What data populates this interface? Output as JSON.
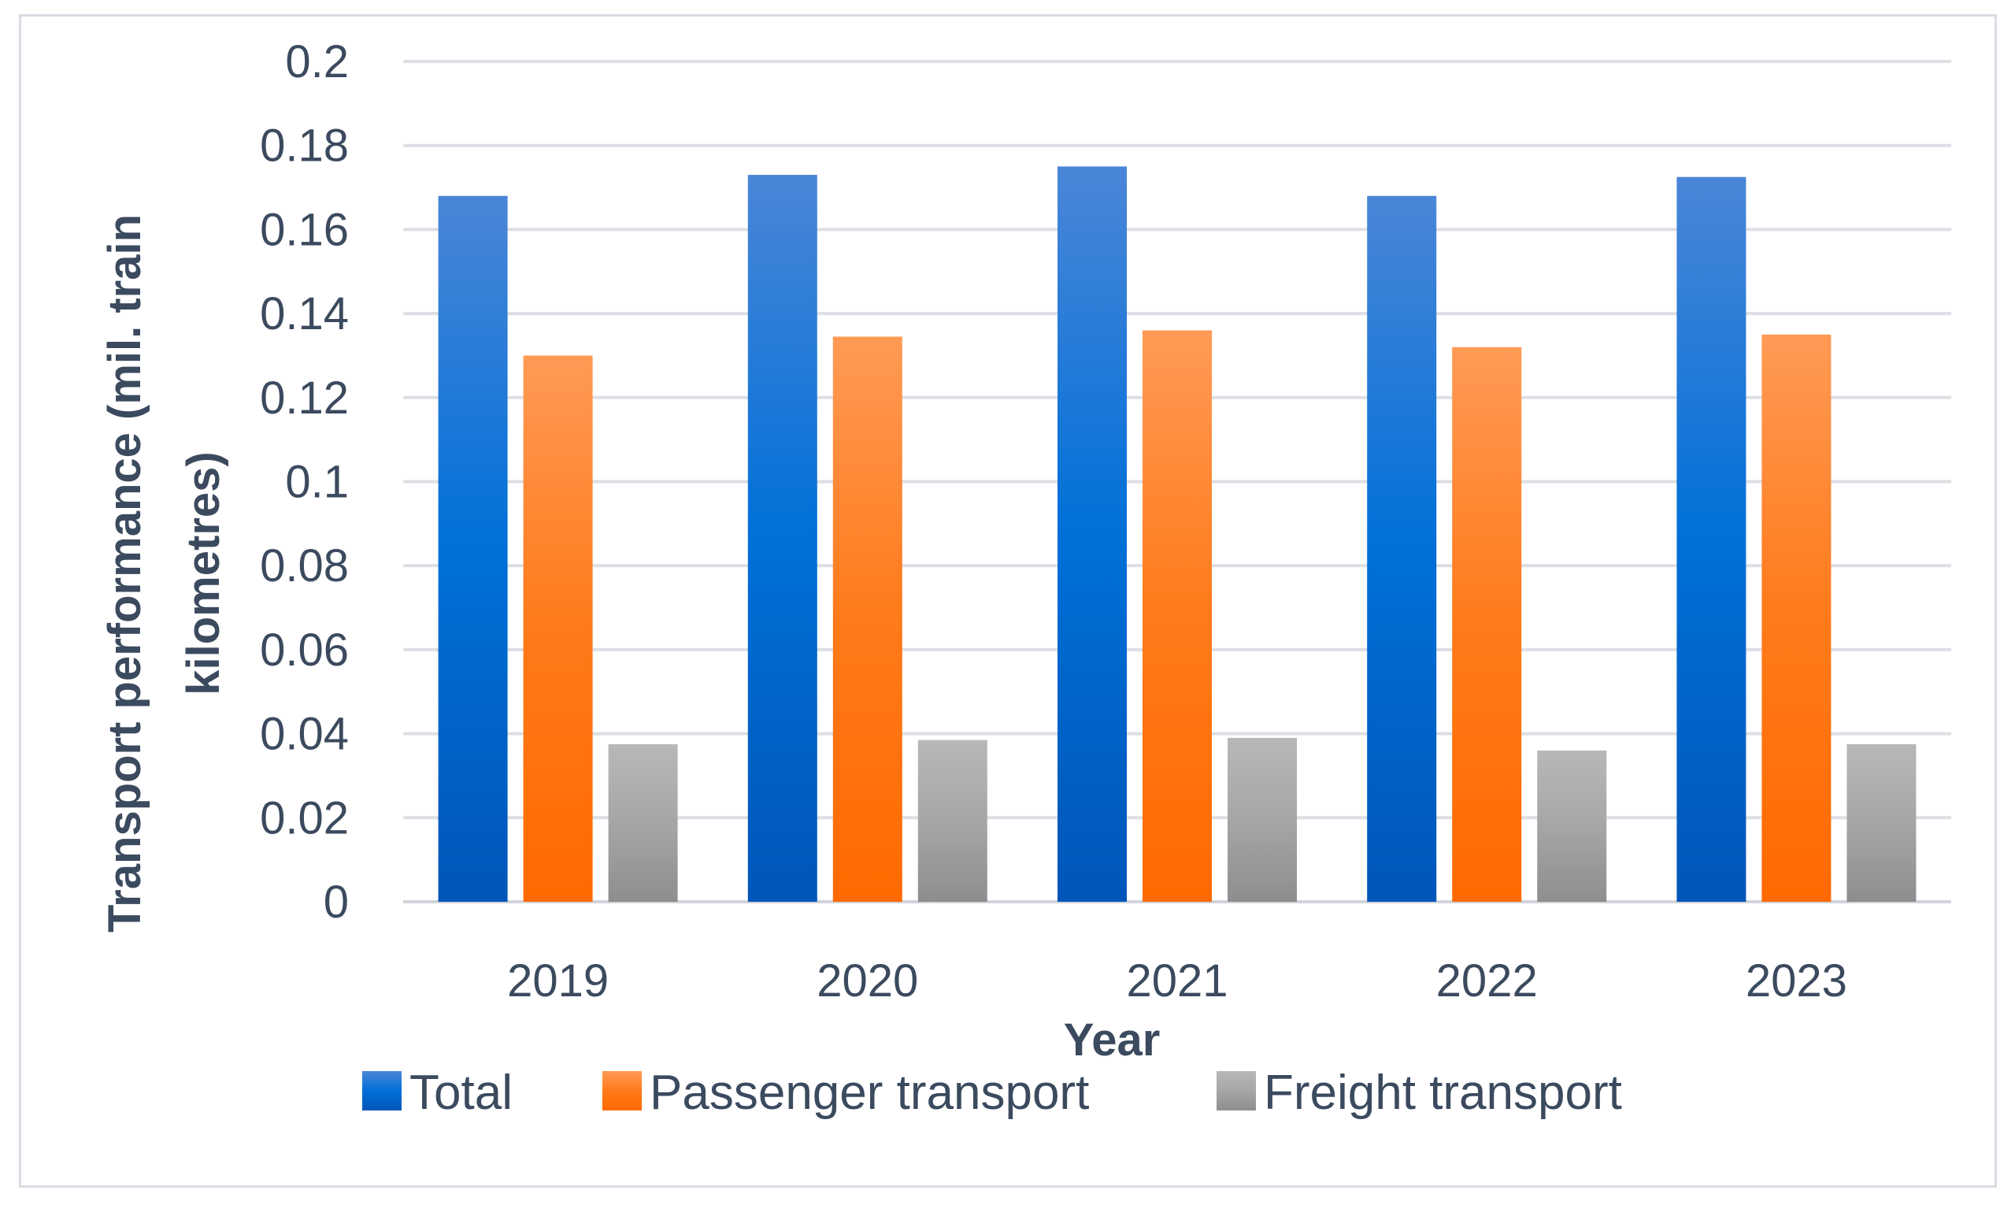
{
  "chart_data": {
    "type": "bar",
    "title": "",
    "xlabel": "Year",
    "ylabel": "Transport performance (mil. train kilometres)",
    "ylim": [
      0,
      0.2
    ],
    "yticks": [
      "0",
      "0.02",
      "0.04",
      "0.06",
      "0.08",
      "0.1",
      "0.12",
      "0.14",
      "0.16",
      "0.18",
      "0.2"
    ],
    "categories": [
      "2019",
      "2020",
      "2021",
      "2022",
      "2023"
    ],
    "grid": true,
    "legend_position": "bottom",
    "series": [
      {
        "name": "Total",
        "values": [
          0.168,
          0.173,
          0.175,
          0.168,
          0.1725
        ],
        "color": "#1f6fd1"
      },
      {
        "name": "Passenger transport",
        "values": [
          0.13,
          0.1345,
          0.136,
          0.132,
          0.135
        ],
        "color": "#ff7a1a"
      },
      {
        "name": "Freight transport",
        "values": [
          0.0375,
          0.0385,
          0.039,
          0.036,
          0.0375
        ],
        "color": "#a6a6a6"
      }
    ]
  }
}
